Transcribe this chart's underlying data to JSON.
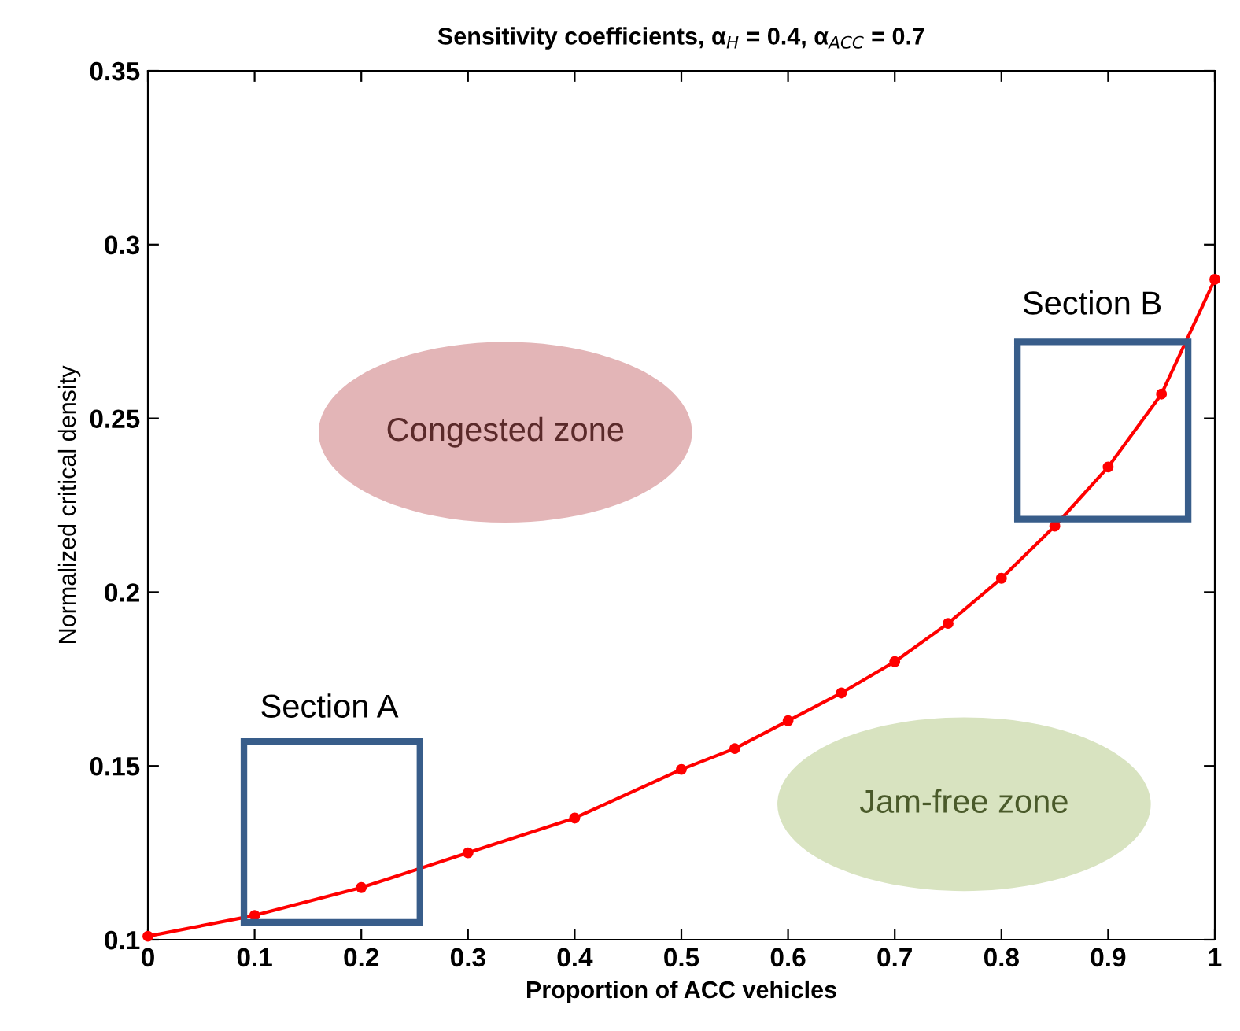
{
  "chart_data": {
    "type": "line",
    "title": "Sensitivity coefficients, α$_{H}$ = 0.4, α$_{ACC}$ = 0.7",
    "xlabel": "Proportion of ACC vehicles",
    "ylabel": "Normalized critical density",
    "x": [
      0,
      0.1,
      0.2,
      0.3,
      0.4,
      0.5,
      0.55,
      0.6,
      0.65,
      0.7,
      0.75,
      0.8,
      0.85,
      0.9,
      0.95,
      1.0
    ],
    "series": [
      {
        "color": "#ff0000",
        "values": [
          0.101,
          0.107,
          0.115,
          0.125,
          0.135,
          0.149,
          0.155,
          0.163,
          0.171,
          0.18,
          0.191,
          0.204,
          0.219,
          0.236,
          0.257,
          0.29
        ]
      }
    ],
    "marker": "circle",
    "line_style": "solid",
    "xlim": [
      0,
      1
    ],
    "xticks": [
      0,
      0.1,
      0.2,
      0.3,
      0.4,
      0.5,
      0.6,
      0.7,
      0.8,
      0.9,
      1
    ],
    "ylim": [
      0.1,
      0.35
    ],
    "yticks": [
      0.1,
      0.15,
      0.2,
      0.25,
      0.3,
      0.35
    ],
    "grid": false,
    "legend": false,
    "annotations": [
      "Section A",
      "Section B",
      "Congested zone",
      "Jam-free zone"
    ]
  }
}
